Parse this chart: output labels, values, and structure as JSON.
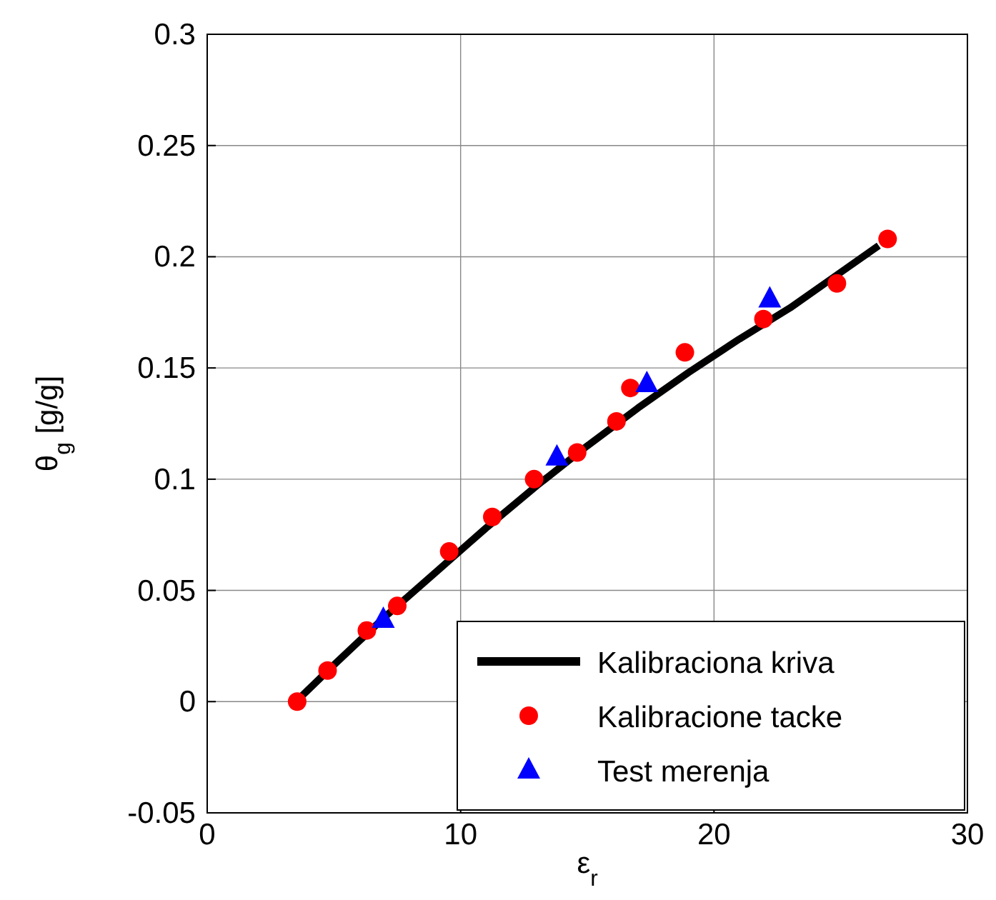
{
  "chart_data": {
    "type": "line",
    "xlabel": "ε$_{r}$",
    "ylabel": "θ$_{g}$ [g/g]",
    "xlim": [
      0,
      30
    ],
    "xticks": [
      0,
      10,
      20,
      30
    ],
    "ylim": [
      -0.05,
      0.3
    ],
    "yticks": [
      -0.05,
      0,
      0.05,
      0.1,
      0.15,
      0.2,
      0.25,
      0.3
    ],
    "grid": true,
    "legend": "bottom right",
    "series": [
      {
        "name": "Kalibraciona kriva",
        "color": "#000000",
        "marker": "none",
        "x": [
          3.5,
          5,
          7,
          9,
          11,
          13,
          15,
          17,
          19,
          21,
          23,
          25,
          26.5
        ],
        "values": [
          0,
          0.0165,
          0.038,
          0.058,
          0.078,
          0.097,
          0.115,
          0.132,
          0.148,
          0.163,
          0.177,
          0.193,
          0.205
        ]
      },
      {
        "name": "Kalibracione tacke",
        "type": "scatter",
        "color": "#ff0000",
        "marker": "circle",
        "x": [
          3.55,
          4.75,
          6.3,
          7.5,
          9.55,
          11.25,
          12.9,
          14.6,
          16.15,
          16.7,
          18.85,
          21.95,
          24.85,
          26.85
        ],
        "values": [
          0,
          0.014,
          0.032,
          0.043,
          0.0675,
          0.083,
          0.1,
          0.112,
          0.126,
          0.141,
          0.157,
          0.172,
          0.188,
          0.208
        ]
      },
      {
        "name": "Test merenja",
        "type": "scatter",
        "color": "#0000ff",
        "marker": "triangle",
        "x": [
          6.95,
          13.8,
          17.35,
          22.2
        ],
        "values": [
          0.037,
          0.11,
          0.143,
          0.181
        ]
      }
    ]
  }
}
